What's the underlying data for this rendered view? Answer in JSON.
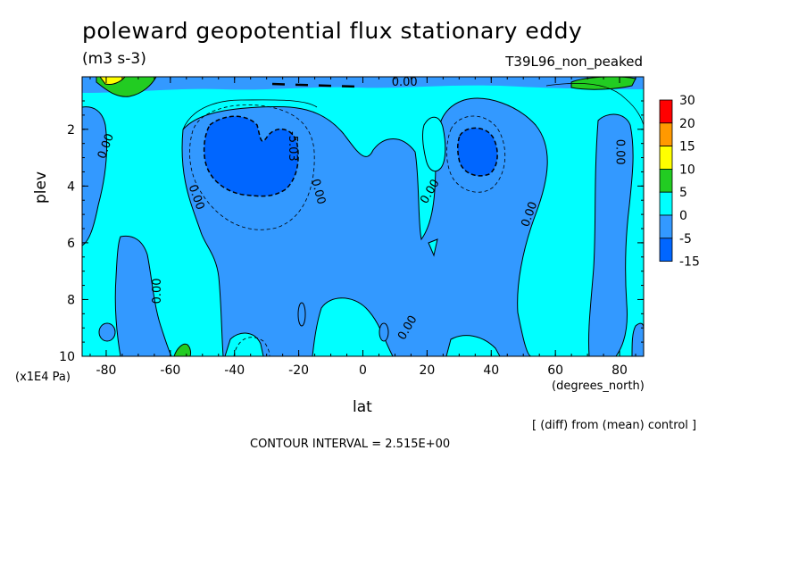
{
  "chart_data": {
    "type": "heatmap",
    "title": "poleward geopotential flux stationary eddy",
    "units": "(m3 s-3)",
    "run_label": "T39L96_non_peaked",
    "xlabel": "lat",
    "ylabel": "plev",
    "x_unit": "(degrees_north)",
    "y_unit": "(x1E4 Pa)",
    "note": "[ (diff) from (mean) control ]",
    "contour_interval": "CONTOUR INTERVAL = 2.515E+00",
    "x_ticks": [
      "-80",
      "-60",
      "-40",
      "-20",
      "0",
      "20",
      "40",
      "60",
      "80"
    ],
    "x_tick_values": [
      -80,
      -60,
      -40,
      -20,
      0,
      20,
      40,
      60,
      80
    ],
    "y_ticks": [
      "2",
      "4",
      "6",
      "8",
      "10"
    ],
    "y_tick_values": [
      2,
      4,
      6,
      8,
      10
    ],
    "xlim": [
      -87.5,
      87.5
    ],
    "ylim": [
      0.15,
      10
    ],
    "y_inverted": true,
    "legend": {
      "position": "right",
      "levels": [
        "30",
        "20",
        "15",
        "10",
        "5",
        "0",
        "-5",
        "-15"
      ],
      "colors": [
        "#ff0000",
        "#ff9900",
        "#ffff00",
        "#22cc22",
        "#00ffff",
        "#3399ff",
        "#0066ff"
      ]
    },
    "contour_labels": [
      {
        "text": "0.00",
        "x": -80,
        "y": 2.6,
        "angle": -70
      },
      {
        "text": "0.00",
        "x": -52,
        "y": 4.4,
        "angle": 70
      },
      {
        "text": "0.00",
        "x": -64,
        "y": 7.7,
        "angle": -90
      },
      {
        "text": "-5.03",
        "x": -22,
        "y": 2.6,
        "angle": 90
      },
      {
        "text": "0.00",
        "x": -14,
        "y": 4.2,
        "angle": 75
      },
      {
        "text": "0.00",
        "x": 13,
        "y": 0.35,
        "angle": 0
      },
      {
        "text": "0.00",
        "x": 21,
        "y": 4.2,
        "angle": -60
      },
      {
        "text": "0.00",
        "x": 52,
        "y": 5.0,
        "angle": -70
      },
      {
        "text": "0.00",
        "x": 80,
        "y": 2.8,
        "angle": 90
      },
      {
        "text": "0.00",
        "x": 14,
        "y": 9.0,
        "angle": -60
      }
    ]
  }
}
